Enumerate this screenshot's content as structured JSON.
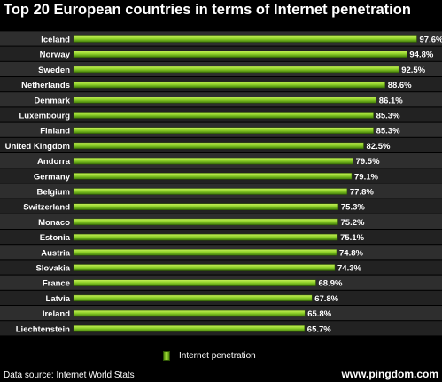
{
  "page": {
    "source": "Data source: Internet World Stats",
    "brand": "www.pingdom.com"
  },
  "colors": {
    "bar_light": "#a6e23a",
    "bar_dark": "#4f8a0c",
    "band_a": "#2e2e2e",
    "band_b": "#222222"
  },
  "chart_data": {
    "type": "bar",
    "orientation": "horizontal",
    "title": "Top 20 European countries in terms of Internet penetration",
    "categories": [
      "Iceland",
      "Norway",
      "Sweden",
      "Netherlands",
      "Denmark",
      "Luxembourg",
      "Finland",
      "United Kingdom",
      "Andorra",
      "Germany",
      "Belgium",
      "Switzerland",
      "Monaco",
      "Estonia",
      "Austria",
      "Slovakia",
      "France",
      "Latvia",
      "Ireland",
      "Liechtenstein"
    ],
    "series": [
      {
        "name": "Internet penetration",
        "values": [
          97.6,
          94.8,
          92.5,
          88.6,
          86.1,
          85.3,
          85.3,
          82.5,
          79.5,
          79.1,
          77.8,
          75.3,
          75.2,
          75.1,
          74.8,
          74.3,
          68.9,
          67.8,
          65.8,
          65.7
        ],
        "labels": [
          "97.6%",
          "94.8%",
          "92.5%",
          "88.6%",
          "86.1%",
          "85.3%",
          "85.3%",
          "82.5%",
          "79.5%",
          "79.1%",
          "77.8%",
          "75.3%",
          "75.2%",
          "75.1%",
          "74.8%",
          "74.3%",
          "68.9%",
          "67.8%",
          "65.8%",
          "65.7%"
        ]
      }
    ],
    "xlim": [
      0,
      100
    ],
    "grid": false,
    "legend": "bottom"
  }
}
